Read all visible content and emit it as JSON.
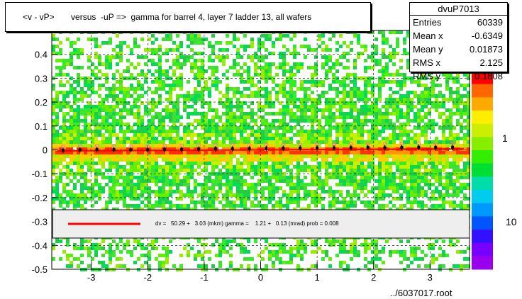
{
  "title": "<v - vP>       versus  -uP =>  gamma for barrel 4, layer 7 ladder 13, all wafers",
  "stats": {
    "name": "dvuP7013",
    "rows": [
      {
        "label": "Entries",
        "value": "60339"
      },
      {
        "label": "Mean x",
        "value": "-0.6349"
      },
      {
        "label": "Mean y",
        "value": "0.01873"
      },
      {
        "label": "RMS x",
        "value": "2.125"
      },
      {
        "label": "RMS y",
        "value": "0.1808"
      }
    ]
  },
  "fit_legend": "dv =   50.29 +   3.03 (mkm) gamma =    1.21 +   0.13 (mrad) prob = 0.008",
  "footer": "../6037017.root",
  "chart_data": {
    "type": "heatmap",
    "xlim": [
      -3.7,
      3.7
    ],
    "ylim": [
      -0.5,
      0.5
    ],
    "x_ticks": [
      "-3",
      "-2",
      "-1",
      "0",
      "1",
      "2",
      "3"
    ],
    "y_ticks": [
      "-0.5",
      "-0.4",
      "-0.3",
      "-0.2",
      "-0.1",
      "0",
      "0.1",
      "0.2",
      "0.3",
      "0.4"
    ],
    "y_tick_values": [
      -0.5,
      -0.4,
      -0.3,
      -0.2,
      -0.1,
      0,
      0.1,
      0.2,
      0.3,
      0.4
    ],
    "x_tick_values": [
      -3,
      -2,
      -1,
      0,
      1,
      2,
      3
    ],
    "grid": true,
    "colorbar_labels": [
      "1",
      "10"
    ],
    "colors": {
      "fit_line": "#ff0000",
      "profile_points": "#000000",
      "open_markers": "#ff66cc",
      "legend_bg": "#eeeeee"
    },
    "fit": {
      "intercept": 0.0,
      "slope": 0.00121
    },
    "profile": {
      "x": [
        -3.5,
        -3.2,
        -2.9,
        -2.6,
        -2.3,
        -2.0,
        -1.7,
        -1.4,
        -1.1,
        -0.8,
        -0.5,
        -0.2,
        0.1,
        0.4,
        0.7,
        1.0,
        1.3,
        1.6,
        1.9,
        2.2,
        2.5,
        2.8,
        3.1,
        3.4
      ],
      "y": [
        -0.002,
        0.0,
        0.001,
        0.001,
        0.0,
        0.0,
        0.002,
        0.002,
        0.003,
        0.004,
        0.004,
        0.005,
        0.006,
        0.006,
        0.007,
        0.008,
        0.008,
        0.009,
        0.01,
        0.009,
        0.01,
        0.011,
        0.01,
        0.011
      ]
    }
  }
}
